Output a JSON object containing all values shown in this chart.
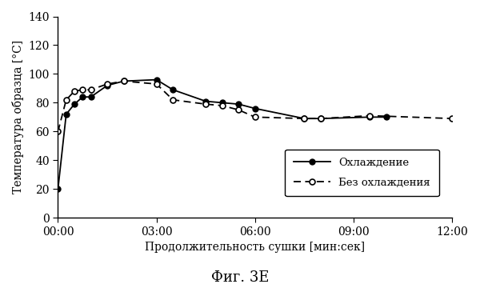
{
  "solid_x": [
    0,
    0.25,
    0.5,
    0.75,
    1.0,
    1.5,
    2.0,
    3.0,
    3.5,
    4.5,
    5.0,
    5.5,
    6.0,
    7.5,
    8.0,
    9.5,
    10.0
  ],
  "solid_y": [
    20,
    72,
    79,
    84,
    84,
    92,
    95,
    96,
    89,
    81,
    80,
    79,
    76,
    69,
    69,
    70,
    70
  ],
  "dashed_x": [
    0,
    0.25,
    0.5,
    0.75,
    1.0,
    1.5,
    2.0,
    3.0,
    3.5,
    4.5,
    5.0,
    5.5,
    6.0,
    7.5,
    8.0,
    9.5,
    12.0
  ],
  "dashed_y": [
    60,
    82,
    88,
    89,
    89,
    93,
    95,
    93,
    82,
    79,
    78,
    75,
    70,
    69,
    69,
    71,
    69
  ],
  "title": "Фиг. 3E",
  "xlabel": "Продолжительность сушки [мин:сек]",
  "ylabel": "Температура образца [°C]",
  "legend_solid": "Охлаждение",
  "legend_dashed": "Без охлаждения",
  "xlim": [
    0,
    12
  ],
  "ylim": [
    0,
    140
  ],
  "xtick_vals": [
    0,
    3,
    6,
    9,
    12
  ],
  "xtick_labels": [
    "00:00",
    "03:00",
    "06:00",
    "09:00",
    "12:00"
  ],
  "ytick_vals": [
    0,
    20,
    40,
    60,
    80,
    100,
    120,
    140
  ],
  "bg_color": "#ffffff",
  "line_color": "#000000"
}
